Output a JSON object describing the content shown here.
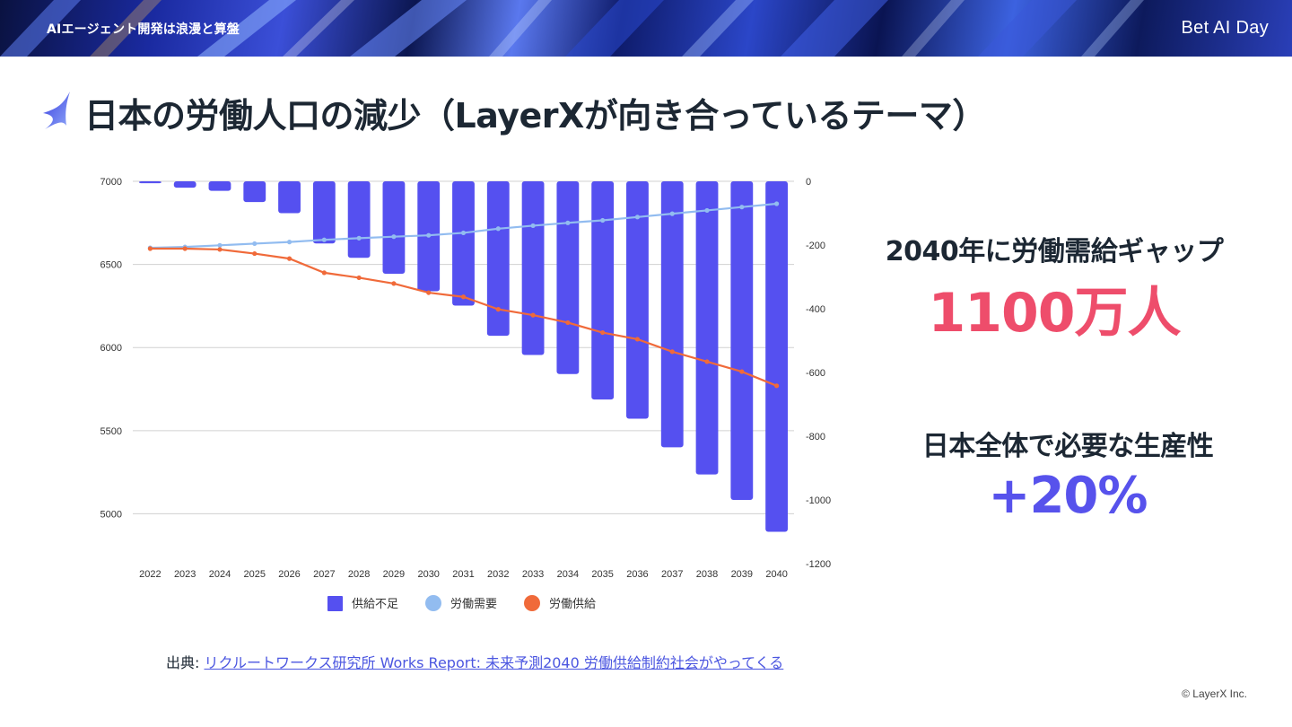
{
  "header": {
    "event_title": "AIエージェント開発は浪漫と算盤",
    "logo_text": "Bet AI Day"
  },
  "page": {
    "title": "日本の労働人口の減少（LayerXが向き合っているテーマ）"
  },
  "stats": {
    "gap_label": "2040年に労働需給ギャップ",
    "gap_value": "1100万人",
    "productivity_label": "日本全体で必要な生産性",
    "productivity_value": "+20%"
  },
  "source": {
    "prefix": "出典: ",
    "link_text": "リクルートワークス研究所 Works Report: 未来予測2040 労働供給制約社会がやってくる"
  },
  "footer": {
    "copyright": "© LayerX Inc."
  },
  "colors": {
    "bar": "#5550f0",
    "demand_line": "#92bcf0",
    "supply_line": "#f06a3a",
    "accent_red": "#ee4d6b",
    "accent_blue": "#5752ec"
  },
  "chart_data": {
    "type": "bar",
    "categories": [
      "2022",
      "2023",
      "2024",
      "2025",
      "2026",
      "2027",
      "2028",
      "2029",
      "2030",
      "2031",
      "2032",
      "2033",
      "2034",
      "2035",
      "2036",
      "2037",
      "2038",
      "2039",
      "2040"
    ],
    "series": [
      {
        "name": "供給不足",
        "type": "bar",
        "axis": "right",
        "values": [
          -6,
          -20,
          -30,
          -65,
          -100,
          -195,
          -240,
          -290,
          -345,
          -390,
          -485,
          -545,
          -605,
          -685,
          -745,
          -835,
          -920,
          -1000,
          -1100
        ]
      },
      {
        "name": "労働需要",
        "type": "line",
        "axis": "left",
        "values": [
          6600,
          6605,
          6615,
          6625,
          6635,
          6648,
          6658,
          6667,
          6675,
          6690,
          6715,
          6733,
          6750,
          6765,
          6785,
          6805,
          6825,
          6845,
          6865
        ]
      },
      {
        "name": "労働供給",
        "type": "line",
        "axis": "left",
        "values": [
          6595,
          6595,
          6590,
          6565,
          6535,
          6450,
          6420,
          6385,
          6330,
          6305,
          6230,
          6195,
          6150,
          6090,
          6050,
          5975,
          5915,
          5855,
          5770
        ]
      }
    ],
    "y_left": {
      "min": 4700,
      "max": 7000,
      "ticks": [
        7000,
        6500,
        6000,
        5500,
        5000
      ]
    },
    "y_right": {
      "min": -1200,
      "max": 0,
      "ticks": [
        0,
        -200,
        -400,
        -600,
        -800,
        -1000,
        -1200
      ]
    },
    "grid": true,
    "legend_position": "bottom"
  }
}
